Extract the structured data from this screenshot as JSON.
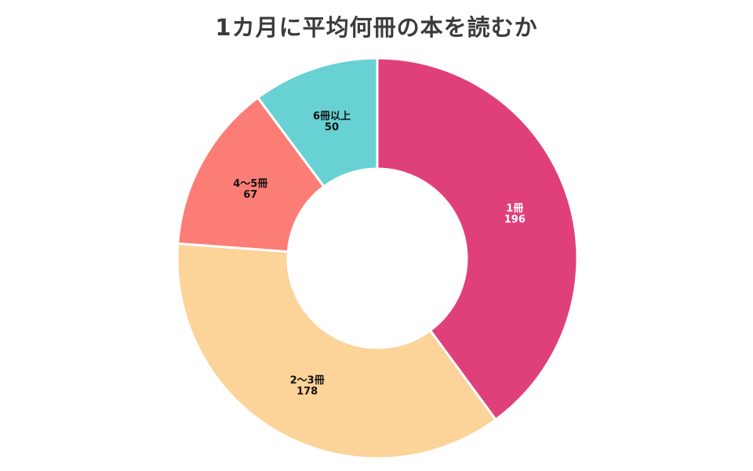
{
  "chart_data": {
    "type": "pie",
    "title": "1カ月に平均何冊の本を読むか",
    "donut": true,
    "start": "top, clockwise",
    "categories": [
      "1冊",
      "2〜3冊",
      "4〜5冊",
      "6冊以上"
    ],
    "values": [
      196,
      178,
      67,
      50
    ],
    "colors": [
      "#e0407a",
      "#fcd398",
      "#fc7d76",
      "#67d1d3"
    ],
    "label_colors": [
      "#ffffff",
      "#111111",
      "#111111",
      "#111111"
    ]
  }
}
